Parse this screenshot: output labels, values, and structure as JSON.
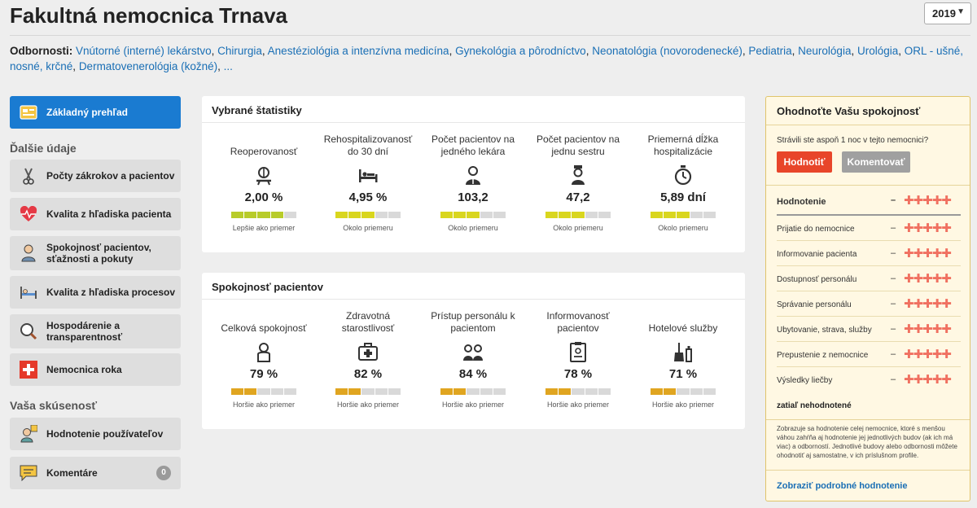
{
  "header": {
    "title": "Fakultná nemocnica Trnava",
    "year": "2019"
  },
  "specialties": {
    "label": "Odbornosti:",
    "items": [
      "Vnútorné (interné) lekárstvo",
      "Chirurgia",
      "Anestéziológia a intenzívna medicína",
      "Gynekológia a pôrodníctvo",
      "Neonatológia (novorodenecké)",
      "Pediatria",
      "Neurológia",
      "Urológia",
      "ORL - ušné, nosné, krčné",
      "Dermatovenerológia (kožné)"
    ],
    "more": "..."
  },
  "sidebar": {
    "overview": "Základný prehľad",
    "section1": "Ďalšie údaje",
    "items": [
      {
        "label": "Počty zákrokov a pacientov"
      },
      {
        "label": "Kvalita z hľadiska pacienta"
      },
      {
        "label": "Spokojnosť pacientov, sťažnosti a pokuty"
      },
      {
        "label": "Kvalita z hľadiska procesov"
      },
      {
        "label": "Hospodárenie a transparentnosť"
      },
      {
        "label": "Nemocnica roka"
      }
    ],
    "section2": "Vaša skúsenosť",
    "items2": [
      {
        "label": "Hodnotenie používateľov"
      },
      {
        "label": "Komentáre",
        "badge": "0"
      }
    ]
  },
  "stats": {
    "title": "Vybrané štatistiky",
    "items": [
      {
        "label": "Reoperovanosť",
        "value": "2,00 %",
        "compare": "Lepšie ako priemer",
        "filled": 4,
        "color": "#b8cc2a"
      },
      {
        "label": "Rehospitalizovanosť do 30 dní",
        "value": "4,95 %",
        "compare": "Okolo priemeru",
        "filled": 3,
        "color": "#d9d61e"
      },
      {
        "label": "Počet pacientov na jedného lekára",
        "value": "103,2",
        "compare": "Okolo priemeru",
        "filled": 3,
        "color": "#d9d61e"
      },
      {
        "label": "Počet pacientov na jednu sestru",
        "value": "47,2",
        "compare": "Okolo priemeru",
        "filled": 3,
        "color": "#d9d61e"
      },
      {
        "label": "Priemerná dĺžka hospitalizácie",
        "value": "5,89 dní",
        "compare": "Okolo priemeru",
        "filled": 3,
        "color": "#d9d61e"
      }
    ]
  },
  "satisfaction": {
    "title": "Spokojnosť pacientov",
    "items": [
      {
        "label": "Celková spokojnosť",
        "value": "79 %",
        "compare": "Horšie ako priemer",
        "filled": 2,
        "color": "#e0a520"
      },
      {
        "label": "Zdravotná starostlivosť",
        "value": "82 %",
        "compare": "Horšie ako priemer",
        "filled": 2,
        "color": "#e0a520"
      },
      {
        "label": "Prístup personálu k pacientom",
        "value": "84 %",
        "compare": "Horšie ako priemer",
        "filled": 2,
        "color": "#e0a520"
      },
      {
        "label": "Informovanosť pacientov",
        "value": "78 %",
        "compare": "Horšie ako priemer",
        "filled": 2,
        "color": "#e0a520"
      },
      {
        "label": "Hotelové služby",
        "value": "71 %",
        "compare": "Horšie ako priemer",
        "filled": 2,
        "color": "#e0a520"
      }
    ]
  },
  "rating": {
    "title": "Ohodnoťte Vašu spokojnosť",
    "question": "Strávili ste aspoň 1 noc v tejto nemocnici?",
    "btn_rate": "Hodnotiť",
    "btn_comment": "Komentovať",
    "header": "Hodnotenie",
    "dash": "–",
    "stars": "✚✚✚✚✚",
    "rows": [
      "Prijatie do nemocnice",
      "Informovanie pacienta",
      "Dostupnosť personálu",
      "Správanie personálu",
      "Ubytovanie, strava, služby",
      "Prepustenie z nemocnice",
      "Výsledky liečby"
    ],
    "none": "zatiaľ nehodnotené",
    "note": "Zobrazuje sa hodnotenie celej nemocnice, ktoré s menšou váhou zahŕňa aj hodnotenie jej jednotlivých budov (ak ich má viac) a odborností. Jednotlivé budovy alebo odbornosti môžete ohodnotiť aj samostatne, v ich príslušnom profile.",
    "link": "Zobraziť podrobné hodnotenie"
  }
}
